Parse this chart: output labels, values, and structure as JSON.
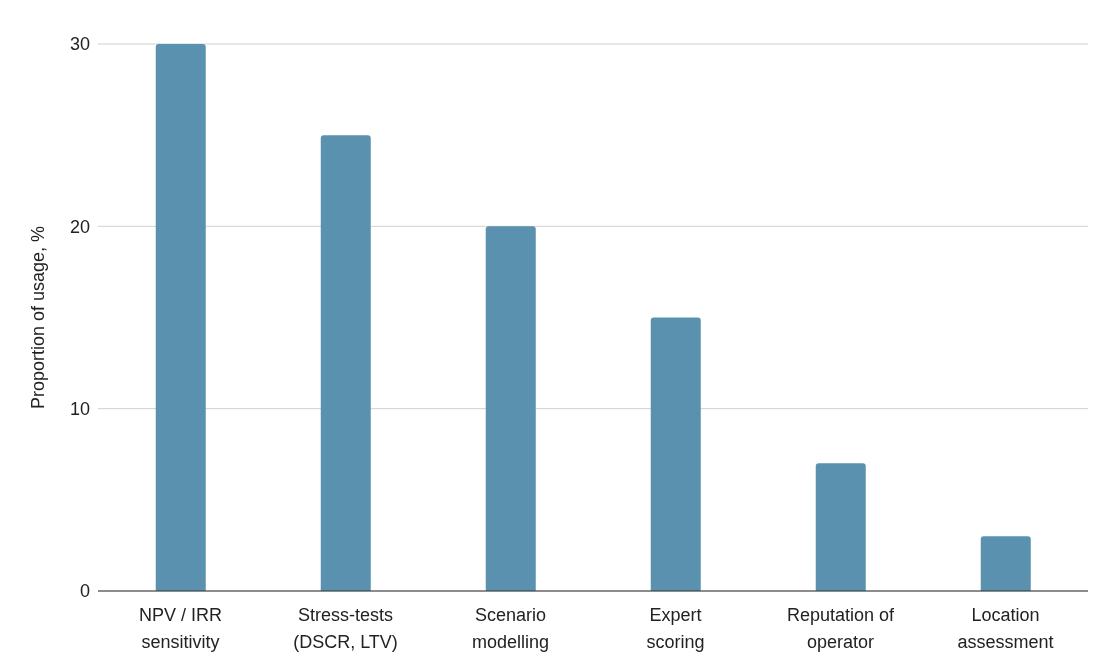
{
  "chart_data": {
    "type": "bar",
    "ylabel": "Proportion of usage, %",
    "categories": [
      "NPV / IRR sensitivity",
      "Stress-tests (DSCR, LTV)",
      "Scenario modelling",
      "Expert scoring",
      "Reputation of operator",
      "Location assessment"
    ],
    "values": [
      30,
      25,
      20,
      15,
      7,
      3
    ],
    "color": "#5a91ae",
    "ylim": [
      0,
      30
    ],
    "yticks": [
      0,
      10,
      20,
      30
    ],
    "grid": "y",
    "legend": false
  }
}
